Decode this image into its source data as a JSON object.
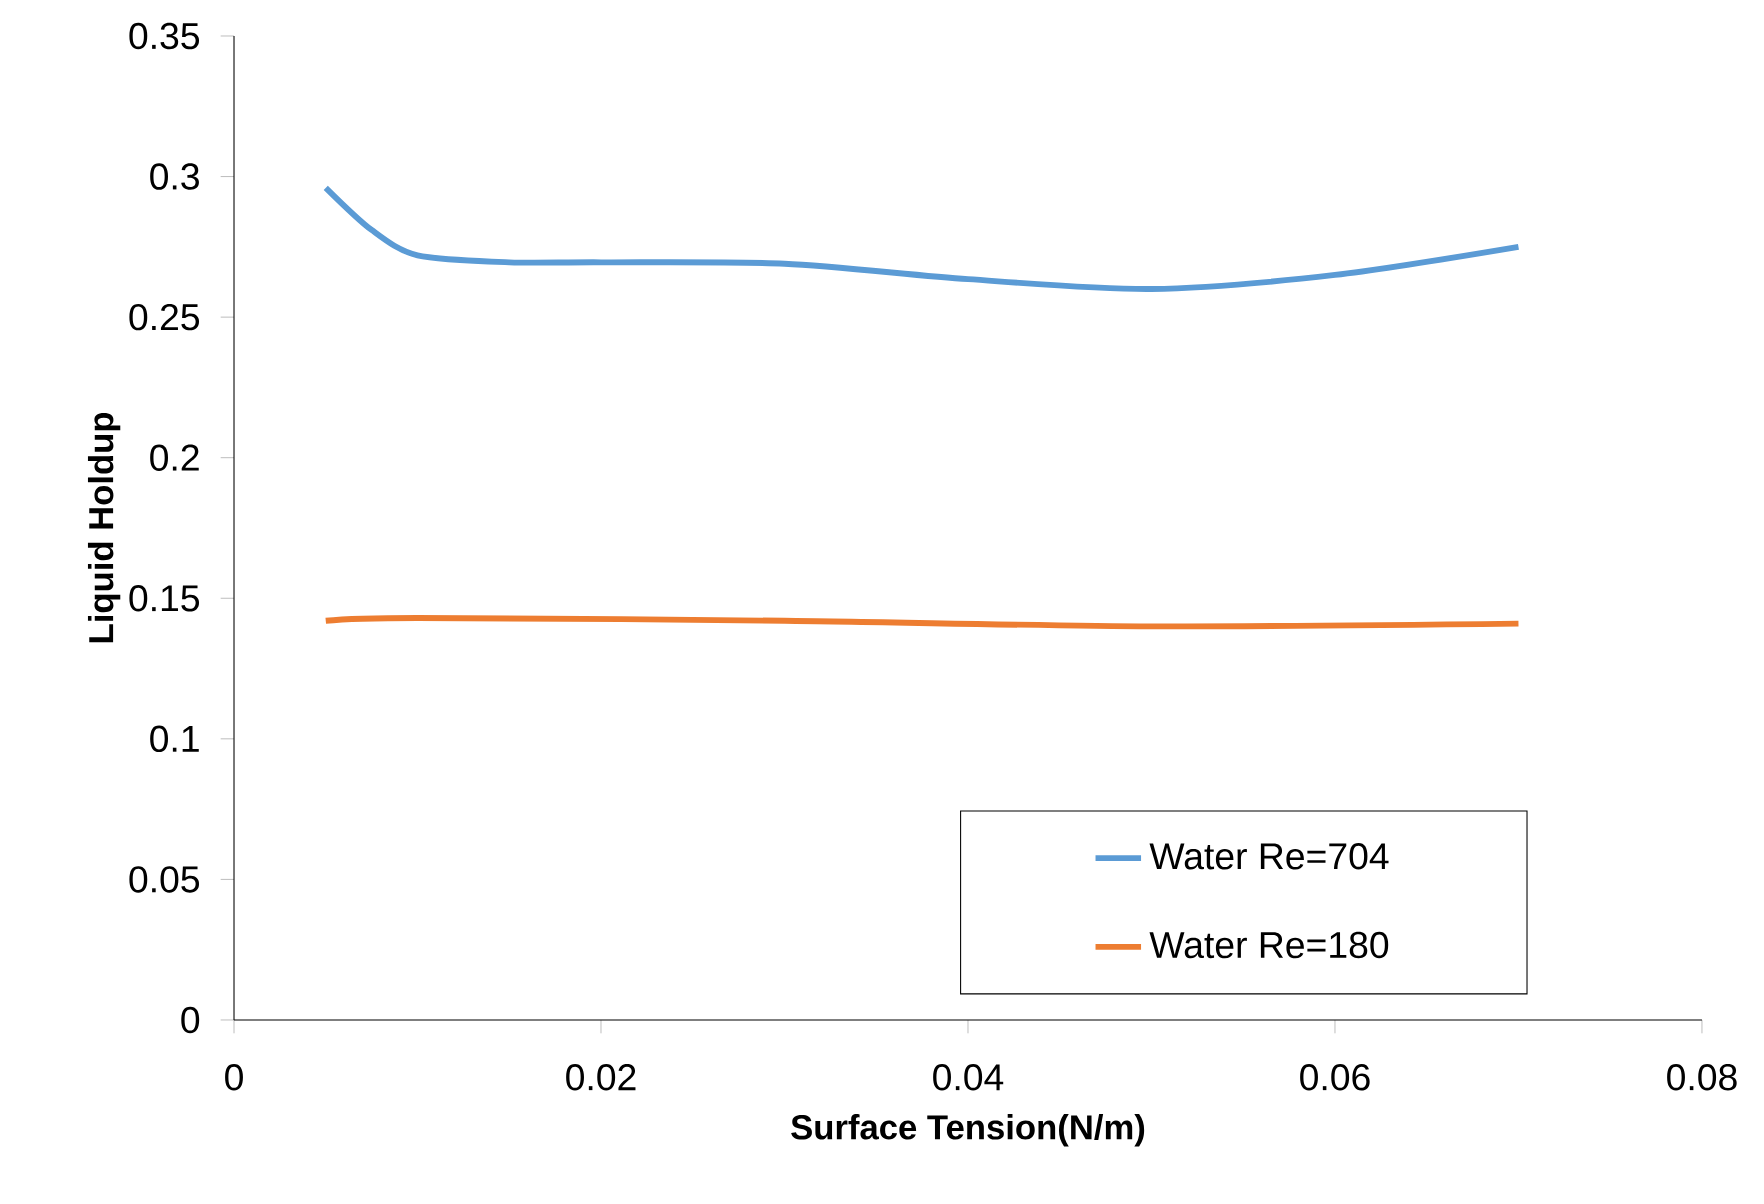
{
  "chart_data": {
    "type": "line",
    "xlabel": "Surface Tension(N/m)",
    "ylabel": "Liquid Holdup",
    "xlim": [
      0,
      0.08
    ],
    "xticks": [
      0,
      0.02,
      0.04,
      0.06,
      0.08
    ],
    "ylim": [
      0,
      0.35
    ],
    "yticks": [
      0,
      0.05,
      0.1,
      0.15,
      0.2,
      0.25,
      0.3,
      0.35
    ],
    "grid": false,
    "legend": "bottom right",
    "marker": "none",
    "line_style": "solid",
    "series": [
      {
        "name": "Water Re=704",
        "color": "#5b9bd5",
        "x": [
          0.005,
          0.0075,
          0.01,
          0.015,
          0.02,
          0.03,
          0.04,
          0.05,
          0.06,
          0.07
        ],
        "values": [
          0.296,
          0.281,
          0.272,
          0.2695,
          0.2695,
          0.269,
          0.2635,
          0.26,
          0.265,
          0.275
        ]
      },
      {
        "name": "Water Re=180",
        "color": "#ed7d31",
        "x": [
          0.005,
          0.01,
          0.03,
          0.05,
          0.07
        ],
        "values": [
          0.142,
          0.143,
          0.142,
          0.14,
          0.141
        ]
      }
    ]
  }
}
